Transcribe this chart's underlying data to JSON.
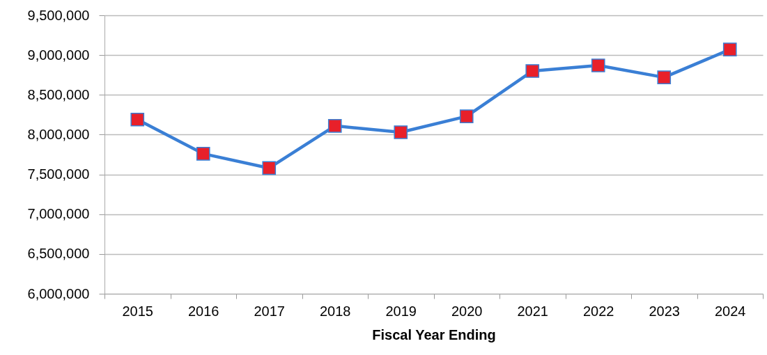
{
  "chart_data": {
    "type": "line",
    "xlabel": "Fiscal Year Ending",
    "categories": [
      "2015",
      "2016",
      "2017",
      "2018",
      "2019",
      "2020",
      "2021",
      "2022",
      "2023",
      "2024"
    ],
    "series": [
      {
        "color": "#3a7fd5",
        "colors": [
          "#e8202a",
          "#e8202a",
          "#e8202a",
          "#e8202a",
          "#e8202a",
          "#e8202a",
          "#e8202a",
          "#e8202a",
          "#e8202a",
          "#e8202a"
        ],
        "values": [
          8190000,
          7760000,
          7580000,
          8110000,
          8030000,
          8230000,
          8800000,
          8870000,
          8720000,
          9070000
        ]
      }
    ],
    "ylim": [
      6000000,
      9500000
    ],
    "yticks": [
      {
        "value": 6000000,
        "label": "6,000,000"
      },
      {
        "value": 6500000,
        "label": "6,500,000"
      },
      {
        "value": 7000000,
        "label": "7,000,000"
      },
      {
        "value": 7500000,
        "label": "7,500,000"
      },
      {
        "value": 8000000,
        "label": "8,000,000"
      },
      {
        "value": 8500000,
        "label": "8,500,000"
      },
      {
        "value": 9000000,
        "label": "9,000,000"
      },
      {
        "value": 9500000,
        "label": "9,500,000"
      }
    ],
    "grid": "y",
    "marker": "square",
    "line_style": "solid"
  }
}
